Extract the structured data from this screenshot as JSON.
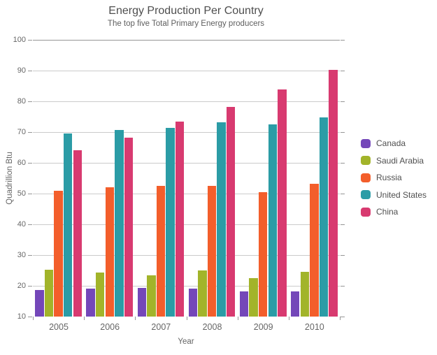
{
  "title": "Energy Production Per Country",
  "subtitle": "The top five Total Primary Energy producers",
  "chart_data": {
    "type": "bar",
    "title": "Energy Production Per Country",
    "subtitle": "The top five Total Primary Energy producers",
    "categories": [
      "2005",
      "2006",
      "2007",
      "2008",
      "2009",
      "2010"
    ],
    "series": [
      {
        "name": "Canada",
        "color": "#7447b9",
        "values": [
          18.7,
          19.1,
          19.3,
          19.0,
          18.1,
          18.2
        ]
      },
      {
        "name": "Saudi Arabia",
        "color": "#a2b42a",
        "values": [
          25.2,
          24.3,
          23.5,
          25.0,
          22.6,
          24.6
        ]
      },
      {
        "name": "Russia",
        "color": "#f35e2b",
        "values": [
          51.0,
          52.0,
          52.6,
          52.6,
          50.4,
          53.2
        ]
      },
      {
        "name": "United States",
        "color": "#2b9ca6",
        "values": [
          69.5,
          70.7,
          71.3,
          73.1,
          72.6,
          74.8
        ]
      },
      {
        "name": "China",
        "color": "#d83a70",
        "values": [
          64.0,
          68.2,
          73.3,
          78.2,
          83.8,
          90.2
        ]
      }
    ],
    "xlabel": "Year",
    "ylabel": "Quadrillion Btu",
    "ylim": [
      10,
      100
    ],
    "ytick_step": 10,
    "yticks": [
      100,
      90,
      80,
      70,
      60,
      50,
      40,
      30,
      20,
      10
    ],
    "grid": true,
    "legend_position": "right",
    "colors": {
      "background": "#ffffff",
      "gridline": "#cbcbcb",
      "axis_line": "#969696",
      "title_text": "#4e4e4e",
      "axis_text": "#666666",
      "legend_text": "#4f4f4f"
    }
  }
}
